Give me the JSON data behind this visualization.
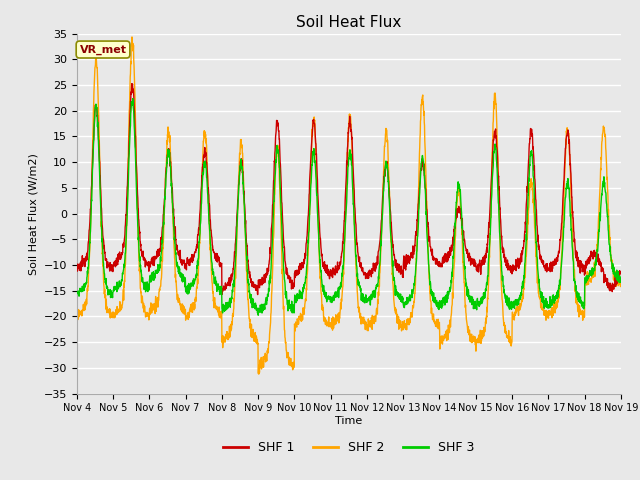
{
  "title": "Soil Heat Flux",
  "ylabel": "Soil Heat Flux (W/m2)",
  "xlabel": "Time",
  "ylim": [
    -35,
    35
  ],
  "yticks": [
    -35,
    -30,
    -25,
    -20,
    -15,
    -10,
    -5,
    0,
    5,
    10,
    15,
    20,
    25,
    30,
    35
  ],
  "xtick_labels": [
    "Nov 4",
    "Nov 5",
    "Nov 6",
    "Nov 7",
    "Nov 8",
    "Nov 9",
    "Nov 10",
    "Nov 11",
    "Nov 12",
    "Nov 13",
    "Nov 14",
    "Nov 15",
    "Nov 16",
    "Nov 17",
    "Nov 18",
    "Nov 19"
  ],
  "colors": {
    "SHF1": "#cc0000",
    "SHF2": "#ffa500",
    "SHF3": "#00cc00"
  },
  "legend_labels": [
    "SHF 1",
    "SHF 2",
    "SHF 3"
  ],
  "annotation_text": "VR_met",
  "annotation_fg": "#8B0000",
  "annotation_bg": "#ffffcc",
  "annotation_border": "#8B8B00",
  "bg_color": "#e8e8e8",
  "grid_color": "#f5f5f5",
  "linewidth": 1.0,
  "n_days": 15,
  "points_per_day": 144,
  "day_peaks_shf1": [
    21,
    25,
    12,
    12,
    10,
    18,
    18,
    18,
    10,
    10,
    1,
    16,
    16,
    16,
    -4
  ],
  "day_mins_shf1": [
    -11,
    -10,
    -10,
    -10,
    -15,
    -14,
    -12,
    -12,
    -12,
    -10,
    -10,
    -11,
    -11,
    -11,
    -11
  ],
  "day_peaks_shf2": [
    30,
    34,
    16,
    16,
    14,
    13,
    19,
    19,
    16,
    23,
    5,
    23,
    6,
    17,
    17
  ],
  "day_mins_shf2": [
    -20,
    -20,
    -19,
    -20,
    -25,
    -30,
    -22,
    -22,
    -22,
    -22,
    -25,
    -25,
    -20,
    -20,
    -14
  ],
  "day_peaks_shf3": [
    21,
    22,
    12,
    10,
    10,
    13,
    12,
    12,
    10,
    11,
    6,
    13,
    12,
    6,
    6
  ],
  "day_mins_shf3": [
    -16,
    -15,
    -13,
    -15,
    -19,
    -19,
    -17,
    -17,
    -17,
    -18,
    -18,
    -18,
    -18,
    -18,
    -13
  ]
}
